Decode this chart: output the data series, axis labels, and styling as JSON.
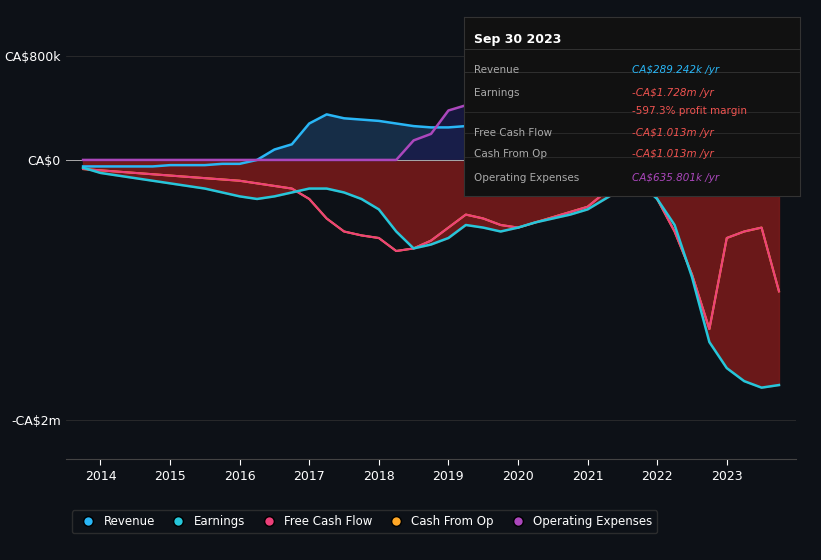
{
  "background_color": "#0d1117",
  "plot_bg_color": "#0d1117",
  "title": "Sep 30 2023",
  "years": [
    2013.75,
    2014.0,
    2014.25,
    2014.5,
    2014.75,
    2015.0,
    2015.25,
    2015.5,
    2015.75,
    2016.0,
    2016.25,
    2016.5,
    2016.75,
    2017.0,
    2017.25,
    2017.5,
    2017.75,
    2018.0,
    2018.25,
    2018.5,
    2018.75,
    2019.0,
    2019.25,
    2019.5,
    2019.75,
    2020.0,
    2020.25,
    2020.5,
    2020.75,
    2021.0,
    2021.25,
    2021.5,
    2021.75,
    2022.0,
    2022.25,
    2022.5,
    2022.75,
    2023.0,
    2023.25,
    2023.5,
    2023.75
  ],
  "revenue": [
    -0.05,
    -0.05,
    -0.05,
    -0.05,
    -0.05,
    -0.04,
    -0.04,
    -0.04,
    -0.03,
    -0.03,
    0.0,
    0.08,
    0.12,
    0.28,
    0.35,
    0.32,
    0.31,
    0.3,
    0.28,
    0.26,
    0.25,
    0.25,
    0.26,
    0.27,
    0.28,
    0.28,
    0.29,
    0.3,
    0.32,
    0.38,
    0.45,
    0.55,
    0.65,
    0.72,
    0.75,
    0.72,
    0.68,
    0.58,
    0.48,
    0.35,
    0.29
  ],
  "earnings": [
    -0.06,
    -0.1,
    -0.12,
    -0.14,
    -0.16,
    -0.18,
    -0.2,
    -0.22,
    -0.25,
    -0.28,
    -0.3,
    -0.28,
    -0.25,
    -0.22,
    -0.22,
    -0.25,
    -0.3,
    -0.38,
    -0.55,
    -0.68,
    -0.65,
    -0.6,
    -0.5,
    -0.52,
    -0.55,
    -0.52,
    -0.48,
    -0.45,
    -0.42,
    -0.38,
    -0.3,
    -0.22,
    -0.18,
    -0.3,
    -0.5,
    -0.9,
    -1.4,
    -1.6,
    -1.7,
    -1.75,
    -1.73
  ],
  "free_cash_flow": [
    -0.07,
    -0.08,
    -0.09,
    -0.1,
    -0.11,
    -0.12,
    -0.13,
    -0.14,
    -0.15,
    -0.16,
    -0.18,
    -0.2,
    -0.22,
    -0.3,
    -0.45,
    -0.55,
    -0.58,
    -0.6,
    -0.7,
    -0.68,
    -0.62,
    -0.52,
    -0.42,
    -0.45,
    -0.5,
    -0.52,
    -0.48,
    -0.44,
    -0.4,
    -0.36,
    -0.25,
    -0.15,
    -0.1,
    -0.3,
    -0.55,
    -0.88,
    -1.3,
    -0.6,
    -0.55,
    -0.52,
    -1.01
  ],
  "cash_from_op": [
    -0.07,
    -0.08,
    -0.09,
    -0.1,
    -0.11,
    -0.12,
    -0.13,
    -0.14,
    -0.15,
    -0.16,
    -0.18,
    -0.2,
    -0.22,
    -0.3,
    -0.45,
    -0.55,
    -0.58,
    -0.6,
    -0.7,
    -0.68,
    -0.62,
    -0.52,
    -0.42,
    -0.45,
    -0.5,
    -0.52,
    -0.48,
    -0.44,
    -0.4,
    -0.36,
    -0.25,
    -0.15,
    -0.1,
    -0.3,
    -0.55,
    -0.88,
    -1.3,
    -0.6,
    -0.55,
    -0.52,
    -1.01
  ],
  "op_expenses": [
    0.0,
    0.0,
    0.0,
    0.0,
    0.0,
    0.0,
    0.0,
    0.0,
    0.0,
    0.0,
    0.0,
    0.0,
    0.0,
    0.0,
    0.0,
    0.0,
    0.0,
    0.0,
    0.0,
    0.15,
    0.2,
    0.38,
    0.42,
    0.4,
    0.38,
    0.35,
    0.33,
    0.32,
    0.35,
    0.4,
    0.5,
    0.6,
    0.72,
    0.8,
    0.82,
    0.78,
    0.73,
    0.67,
    0.6,
    0.65,
    0.64
  ],
  "revenue_color": "#29b6f6",
  "earnings_color": "#26c6da",
  "free_cash_flow_color": "#ec407a",
  "cash_from_op_color": "#ffa726",
  "op_expenses_color": "#ab47bc",
  "fill_positive_color": "#1a3a5c",
  "fill_negative_color": "#7b1a1a",
  "xlabel_years": [
    2014,
    2015,
    2016,
    2017,
    2018,
    2019,
    2020,
    2021,
    2022,
    2023
  ],
  "yticks_labels": [
    "CA$800k",
    "CA$0",
    "-CA$2m"
  ],
  "yticks_values": [
    0.8,
    0.0,
    -2.0
  ],
  "ylim": [
    -2.3,
    1.1
  ],
  "xlim": [
    2013.5,
    2024.0
  ],
  "tooltip_title": "Sep 30 2023",
  "tooltip_rows": [
    {
      "label": "Revenue",
      "value": "CA$289.242k /yr",
      "value_color": "#29b6f6"
    },
    {
      "label": "Earnings",
      "value": "-CA$1.728m /yr",
      "value_color": "#ef5350"
    },
    {
      "label": "",
      "value": "-597.3% profit margin",
      "value_color": "#ef5350"
    },
    {
      "label": "Free Cash Flow",
      "value": "-CA$1.013m /yr",
      "value_color": "#ef5350"
    },
    {
      "label": "Cash From Op",
      "value": "-CA$1.013m /yr",
      "value_color": "#ef5350"
    },
    {
      "label": "Operating Expenses",
      "value": "CA$635.801k /yr",
      "value_color": "#ab47bc"
    }
  ],
  "legend_items": [
    {
      "label": "Revenue",
      "color": "#29b6f6"
    },
    {
      "label": "Earnings",
      "color": "#26c6da"
    },
    {
      "label": "Free Cash Flow",
      "color": "#ec407a"
    },
    {
      "label": "Cash From Op",
      "color": "#ffa726"
    },
    {
      "label": "Operating Expenses",
      "color": "#ab47bc"
    }
  ]
}
